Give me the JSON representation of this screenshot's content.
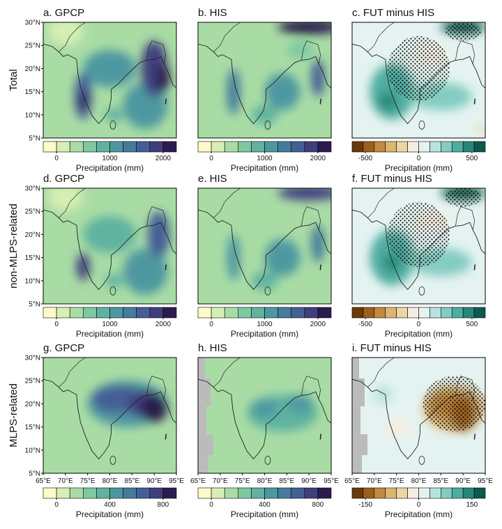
{
  "row_labels": [
    "Total",
    "non-MLPS-related",
    "MLPS-related"
  ],
  "map_axes": {
    "lon_lim": [
      65,
      95
    ],
    "lat_lim": [
      5,
      30
    ],
    "lon_ticks": [
      {
        "value": 65,
        "label": "65°E"
      },
      {
        "value": 70,
        "label": "70°E"
      },
      {
        "value": 75,
        "label": "75°E"
      },
      {
        "value": 80,
        "label": "80°E"
      },
      {
        "value": 85,
        "label": "85°E"
      },
      {
        "value": 90,
        "label": "90°E"
      },
      {
        "value": 95,
        "label": "95°E"
      }
    ],
    "lat_ticks": [
      {
        "value": 5,
        "label": "5°N"
      },
      {
        "value": 10,
        "label": "10°N"
      },
      {
        "value": 15,
        "label": "15°N"
      },
      {
        "value": 20,
        "label": "20°N"
      },
      {
        "value": 25,
        "label": "25°N"
      },
      {
        "value": 30,
        "label": "30°N"
      }
    ]
  },
  "panels": [
    {
      "title": "a. GPCP",
      "colorbar": {
        "colors": [
          "#fdfbc9",
          "#d6efb3",
          "#a9dca5",
          "#7fc9a0",
          "#5fb3a0",
          "#4d98a0",
          "#457c9c",
          "#445f96",
          "#3f3f7e",
          "#2c1c4e"
        ],
        "lim": [
          -250,
          2250
        ],
        "ticks": [
          0,
          1000,
          2000
        ],
        "label": "Precipitation (mm)"
      }
    },
    {
      "title": "b. HIS",
      "colorbar": {
        "colors": [
          "#fdfbc9",
          "#d6efb3",
          "#a9dca5",
          "#7fc9a0",
          "#5fb3a0",
          "#4d98a0",
          "#457c9c",
          "#445f96",
          "#3f3f7e",
          "#2c1c4e"
        ],
        "lim": [
          -250,
          2250
        ],
        "ticks": [
          0,
          1000,
          2000
        ],
        "label": "Precipitation (mm)"
      }
    },
    {
      "title": "c. FUT minus HIS",
      "colorbar": {
        "colors": [
          "#6b3a0a",
          "#9c5f1c",
          "#c18a3f",
          "#dbb673",
          "#ecd6a6",
          "#f6ede0",
          "#e4f3f1",
          "#b7e3dc",
          "#84ccc1",
          "#4fada0",
          "#25877a",
          "#0b5a4c"
        ],
        "lim": [
          -625,
          625
        ],
        "ticks": [
          -500,
          0,
          500
        ],
        "label": "Precipitation (mm)"
      }
    },
    {
      "title": "d. GPCP",
      "colorbar": {
        "colors": [
          "#fdfbc9",
          "#d6efb3",
          "#a9dca5",
          "#7fc9a0",
          "#5fb3a0",
          "#4d98a0",
          "#457c9c",
          "#445f96",
          "#3f3f7e",
          "#2c1c4e"
        ],
        "lim": [
          -250,
          2250
        ],
        "ticks": [
          0,
          1000,
          2000
        ],
        "label": "Precipitation (mm)"
      }
    },
    {
      "title": "e. HIS",
      "colorbar": {
        "colors": [
          "#fdfbc9",
          "#d6efb3",
          "#a9dca5",
          "#7fc9a0",
          "#5fb3a0",
          "#4d98a0",
          "#457c9c",
          "#445f96",
          "#3f3f7e",
          "#2c1c4e"
        ],
        "lim": [
          -250,
          2250
        ],
        "ticks": [
          0,
          1000,
          2000
        ],
        "label": "Precipitation (mm)"
      }
    },
    {
      "title": "f. FUT minus HIS",
      "colorbar": {
        "colors": [
          "#6b3a0a",
          "#9c5f1c",
          "#c18a3f",
          "#dbb673",
          "#ecd6a6",
          "#f6ede0",
          "#e4f3f1",
          "#b7e3dc",
          "#84ccc1",
          "#4fada0",
          "#25877a",
          "#0b5a4c"
        ],
        "lim": [
          -625,
          625
        ],
        "ticks": [
          -500,
          0,
          500
        ],
        "label": "Precipitation (mm)"
      }
    },
    {
      "title": "g. GPCP",
      "colorbar": {
        "colors": [
          "#fdfbc9",
          "#d6efb3",
          "#a9dca5",
          "#7fc9a0",
          "#5fb3a0",
          "#4d98a0",
          "#457c9c",
          "#445f96",
          "#3f3f7e",
          "#2c1c4e"
        ],
        "lim": [
          -100,
          900
        ],
        "ticks": [
          0,
          400,
          800
        ],
        "label": "Precipitation (mm)"
      }
    },
    {
      "title": "h. HIS",
      "colorbar": {
        "colors": [
          "#fdfbc9",
          "#d6efb3",
          "#a9dca5",
          "#7fc9a0",
          "#5fb3a0",
          "#4d98a0",
          "#457c9c",
          "#445f96",
          "#3f3f7e",
          "#2c1c4e"
        ],
        "lim": [
          -100,
          900
        ],
        "ticks": [
          0,
          400,
          800
        ],
        "label": "Precipitation (mm)"
      }
    },
    {
      "title": "i. FUT minus HIS",
      "colorbar": {
        "colors": [
          "#6b3a0a",
          "#9c5f1c",
          "#c18a3f",
          "#dbb673",
          "#ecd6a6",
          "#f6ede0",
          "#e4f3f1",
          "#b7e3dc",
          "#84ccc1",
          "#4fada0",
          "#25877a",
          "#0b5a4c"
        ],
        "lim": [
          -187.5,
          187.5
        ],
        "ticks": [
          -150,
          0,
          150
        ],
        "label": "Precipitation (mm)"
      }
    }
  ]
}
